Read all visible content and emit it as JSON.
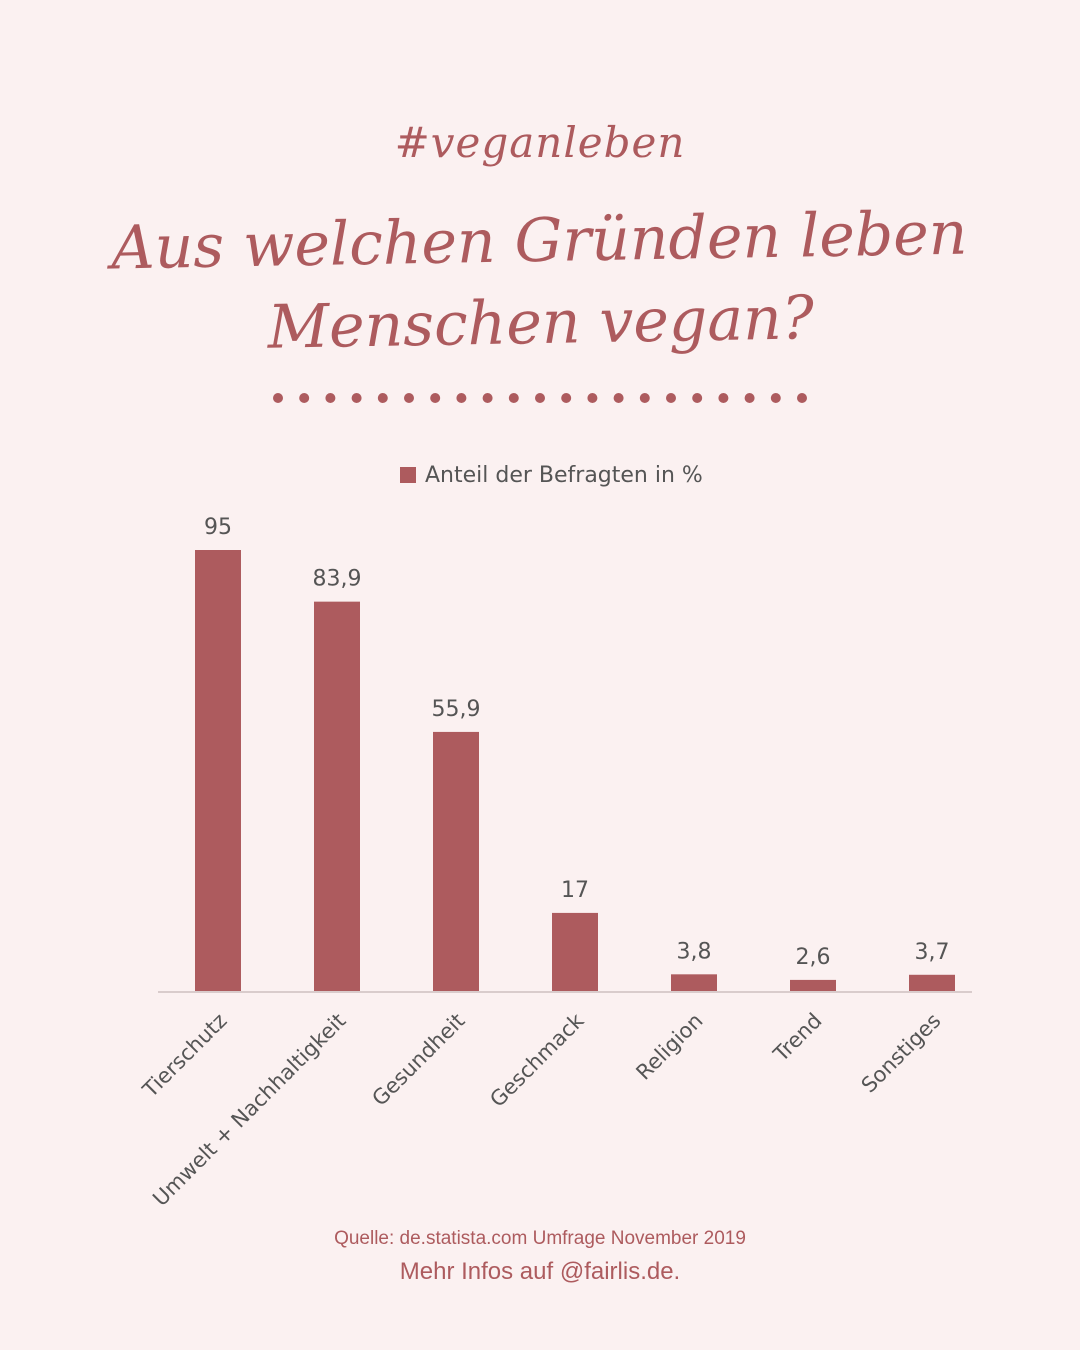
{
  "header": {
    "hashtag": "#veganleben",
    "title": "Aus welchen Gründen leben Menschen vegan?"
  },
  "colors": {
    "background": "#fbf1f1",
    "accent": "#ad5b5e",
    "label": "#555555"
  },
  "chart_data": {
    "type": "bar",
    "categories": [
      "Tierschutz",
      "Umwelt + Nachhaltigkeit",
      "Gesundheit",
      "Geschmack",
      "Religion",
      "Trend",
      "Sonstiges"
    ],
    "series": [
      {
        "name": "Anteil der Befragten in %",
        "values": [
          95,
          83.9,
          55.9,
          17,
          3.8,
          2.6,
          3.7
        ],
        "labels": [
          "95",
          "83,9",
          "55,9",
          "17",
          "3,8",
          "2,6",
          "3,7"
        ]
      }
    ],
    "ylim": [
      0,
      95
    ],
    "legend": "top-center",
    "grid": false
  },
  "footer": {
    "source": "Quelle: de.statista.com Umfrage November 2019",
    "more": "Mehr Infos auf @fairlis.de."
  }
}
